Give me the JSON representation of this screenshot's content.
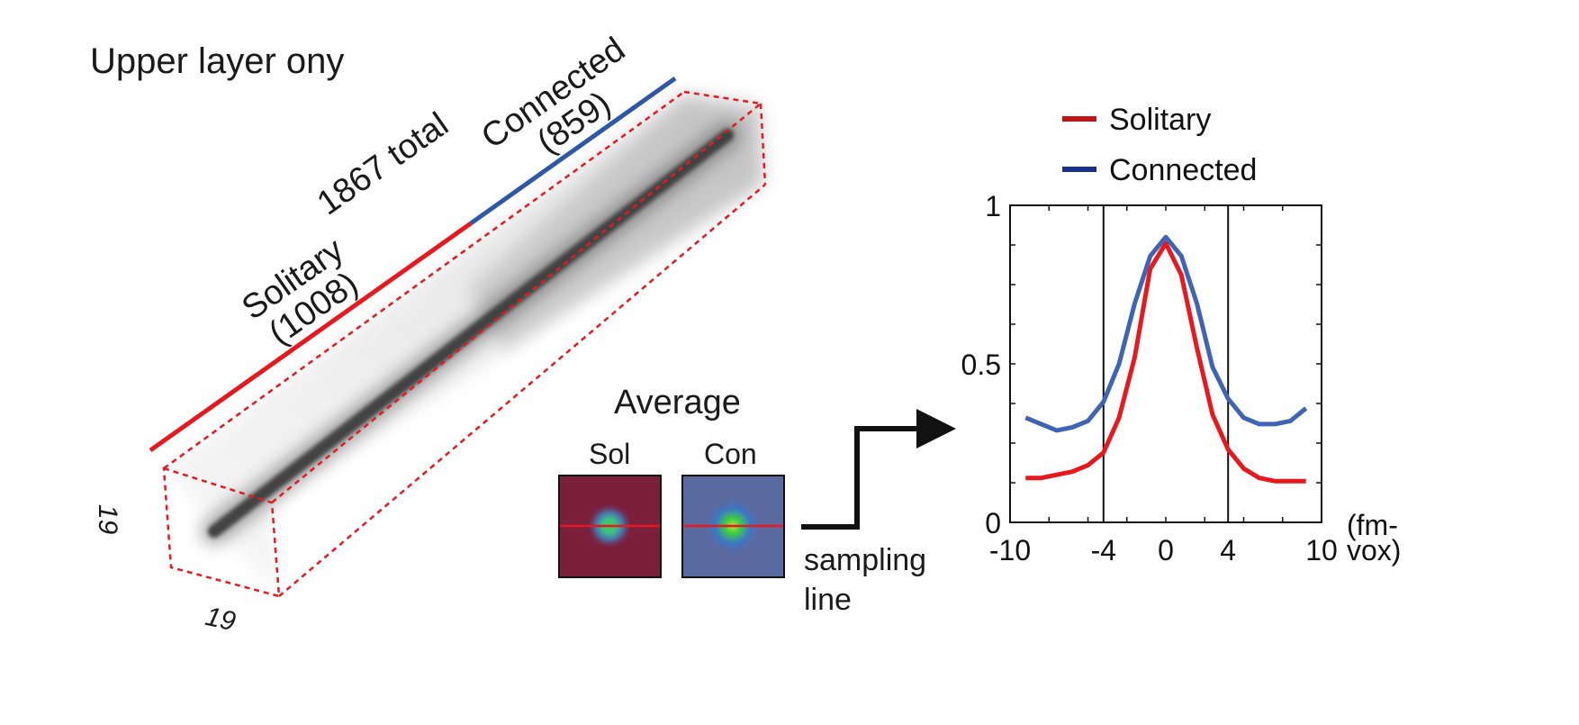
{
  "left_panel": {
    "title": "Upper layer ony",
    "total_label": "1867 total",
    "connected_label_1": "Connected",
    "connected_label_2": "(859)",
    "solitary_label_1": "Solitary",
    "solitary_label_2": "(1008)",
    "dim_height": "19",
    "dim_depth": "19",
    "colors": {
      "solitary": "#e8191e",
      "connected": "#2e57a8",
      "box": "#e8191e"
    }
  },
  "average_panel": {
    "title": "Average",
    "sol_label": "Sol",
    "con_label": "Con",
    "sampling_label_1": "sampling",
    "sampling_label_2": "line",
    "colors": {
      "sol_bg": "#7a1f3c",
      "con_bg": "#5a6aa0",
      "center": "#3fd13f",
      "line": "#e8191e"
    }
  },
  "chart_data": {
    "type": "line",
    "title": "",
    "xlabel": "(fm-vox)",
    "ylabel": "",
    "xlim": [
      -10,
      10
    ],
    "ylim": [
      0,
      1
    ],
    "xticks": [
      -10,
      -4,
      0,
      4,
      10
    ],
    "yticks": [
      0,
      0.5,
      1
    ],
    "vlines": [
      -4,
      4
    ],
    "legend_position": "top",
    "x": [
      -9,
      -8,
      -7,
      -6,
      -5,
      -4,
      -3,
      -2,
      -1,
      0,
      1,
      2,
      3,
      4,
      5,
      6,
      7,
      8,
      9
    ],
    "series": [
      {
        "name": "Solitary",
        "color": "#e8191e",
        "values": [
          0.14,
          0.14,
          0.15,
          0.16,
          0.18,
          0.22,
          0.33,
          0.52,
          0.8,
          0.88,
          0.78,
          0.55,
          0.34,
          0.23,
          0.17,
          0.14,
          0.13,
          0.13,
          0.13
        ]
      },
      {
        "name": "Connected",
        "color": "#3f63b5",
        "values": [
          0.33,
          0.31,
          0.29,
          0.3,
          0.32,
          0.38,
          0.5,
          0.69,
          0.84,
          0.9,
          0.84,
          0.69,
          0.49,
          0.39,
          0.33,
          0.31,
          0.31,
          0.32,
          0.36
        ]
      }
    ]
  }
}
